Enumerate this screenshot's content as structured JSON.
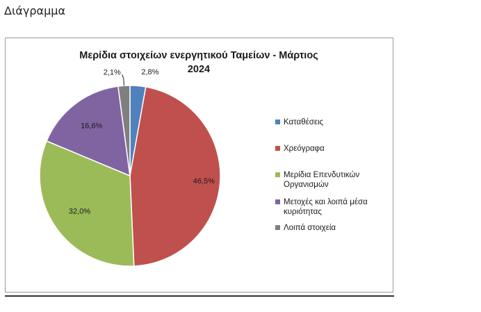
{
  "page": {
    "heading": "Διάγραμμα"
  },
  "chart_data": {
    "type": "pie",
    "title": "Μερίδια στοιχείων ενεργητικού Ταμείων -  Μάρτιος 2024",
    "title_lines": [
      "Μερίδια στοιχείων ενεργητικού Ταμείων -  Μάρτιος",
      "2024"
    ],
    "legend_position": "right",
    "start_angle_deg": 0,
    "direction": "clockwise",
    "slices": [
      {
        "name": "Καταθέσεις",
        "legend_lines": [
          "Καταθέσεις"
        ],
        "value": 2.8,
        "label": "2,8%",
        "color": "#4f81bd"
      },
      {
        "name": "Χρεόγραφα",
        "legend_lines": [
          "Χρεόγραφα"
        ],
        "value": 46.5,
        "label": "46,5%",
        "color": "#c0504d"
      },
      {
        "name": "Μερίδια Επενδυτικών Οργανισμών",
        "legend_lines": [
          "Μερίδια Επενδυτικών",
          "Οργανισμών"
        ],
        "value": 32.0,
        "label": "32,0%",
        "color": "#9bbb59"
      },
      {
        "name": "Μετοχές και λοιπά μέσα κυριότητας",
        "legend_lines": [
          "Μετοχές και λοιπά μέσα",
          "κυριότητας"
        ],
        "value": 16.6,
        "label": "16,6%",
        "color": "#8064a2"
      },
      {
        "name": "Λοιπά στοιχεία",
        "legend_lines": [
          "Λοιπά στοιχεία"
        ],
        "value": 2.1,
        "label": "2,1%",
        "color": "#7f7f7f"
      }
    ]
  }
}
